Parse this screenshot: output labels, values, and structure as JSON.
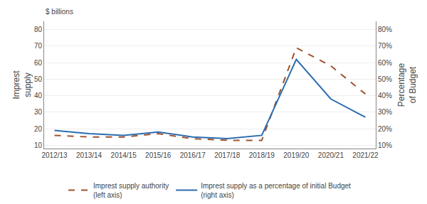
{
  "chart_data": {
    "type": "line",
    "categories": [
      "2012/13",
      "2013/14",
      "2014/15",
      "2015/16",
      "2016/17",
      "2017/18",
      "2018/19",
      "2019/20",
      "2020/21",
      "2021/22"
    ],
    "series": [
      {
        "name": "Imprest supply authority\n(left axis)",
        "color": "#a0522d",
        "line_style": "dashed",
        "values": [
          16,
          15,
          15,
          17,
          14,
          13,
          13,
          69,
          58,
          41
        ]
      },
      {
        "name": "Imprest supply as a percentage of initial Budget\n(right axis)",
        "color": "#2b6cb0",
        "line_style": "solid",
        "axis": "y2",
        "values": [
          19,
          17,
          16,
          18,
          15,
          14,
          16,
          62,
          38,
          27
        ]
      }
    ],
    "ylabel": "Imprest\nsupply",
    "y2label": "Percentage\nof Budget",
    "annotations": [
      "$ billions"
    ],
    "ylim": [
      8,
      85
    ],
    "yticks": [
      10,
      20,
      30,
      40,
      50,
      60,
      70,
      80
    ],
    "y2lim": [
      8,
      85
    ],
    "y2ticks": [
      {
        "value": 10,
        "label": "10%"
      },
      {
        "value": 20,
        "label": "20%"
      },
      {
        "value": 30,
        "label": "30%"
      },
      {
        "value": 40,
        "label": "40%"
      },
      {
        "value": 50,
        "label": "50%"
      },
      {
        "value": 60,
        "label": "60%"
      },
      {
        "value": 70,
        "label": "70%"
      },
      {
        "value": 80,
        "label": "80%"
      }
    ],
    "grid": true,
    "legend": "bottom"
  }
}
